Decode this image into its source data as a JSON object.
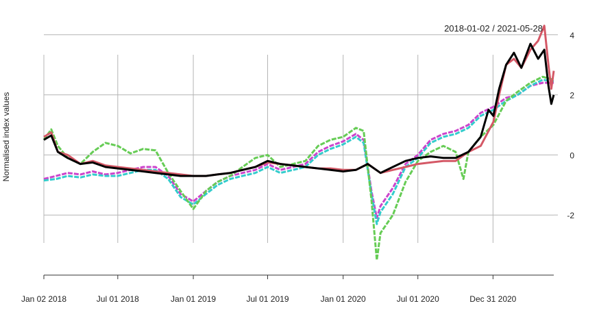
{
  "chart_data": {
    "type": "line",
    "date_range_label": "2018-01-02 / 2021-05-28",
    "ylabel": "Normalised index values",
    "xlim": [
      "2018-01-02",
      "2021-05-28"
    ],
    "ylim": [
      -4,
      4.2
    ],
    "y_ticks": [
      {
        "value": 4,
        "label": "4"
      },
      {
        "value": 2,
        "label": "2"
      },
      {
        "value": 0,
        "label": "0"
      },
      {
        "value": -2,
        "label": "-2"
      }
    ],
    "x_ticks": [
      {
        "date": "2018-01-02",
        "label": "Jan 02 2018"
      },
      {
        "date": "2018-07-01",
        "label": "Jul 01 2018"
      },
      {
        "date": "2019-01-01",
        "label": "Jan 01 2019"
      },
      {
        "date": "2019-07-01",
        "label": "Jul 01 2019"
      },
      {
        "date": "2020-01-01",
        "label": "Jan 01 2020"
      },
      {
        "date": "2020-07-01",
        "label": "Jul 01 2020"
      },
      {
        "date": "2020-12-31",
        "label": "Dec 31 2020"
      }
    ],
    "grid": true,
    "colors": {
      "grid": "#b4b4b4",
      "axis": "#333333"
    },
    "series": [
      {
        "color": "#cc44cc",
        "dash": true,
        "points": [
          [
            "2018-01-02",
            -0.8
          ],
          [
            "2018-02-01",
            -0.7
          ],
          [
            "2018-03-01",
            -0.6
          ],
          [
            "2018-04-01",
            -0.65
          ],
          [
            "2018-05-01",
            -0.55
          ],
          [
            "2018-06-01",
            -0.65
          ],
          [
            "2018-07-01",
            -0.6
          ],
          [
            "2018-08-01",
            -0.5
          ],
          [
            "2018-09-01",
            -0.4
          ],
          [
            "2018-10-01",
            -0.4
          ],
          [
            "2018-11-01",
            -0.7
          ],
          [
            "2018-12-01",
            -1.3
          ],
          [
            "2019-01-01",
            -1.55
          ],
          [
            "2019-02-01",
            -1.2
          ],
          [
            "2019-03-01",
            -0.9
          ],
          [
            "2019-04-01",
            -0.7
          ],
          [
            "2019-05-01",
            -0.6
          ],
          [
            "2019-06-01",
            -0.5
          ],
          [
            "2019-07-01",
            -0.3
          ],
          [
            "2019-08-01",
            -0.5
          ],
          [
            "2019-09-01",
            -0.4
          ],
          [
            "2019-10-01",
            -0.3
          ],
          [
            "2019-11-01",
            0.1
          ],
          [
            "2019-12-01",
            0.3
          ],
          [
            "2020-01-01",
            0.45
          ],
          [
            "2020-02-01",
            0.7
          ],
          [
            "2020-02-20",
            0.5
          ],
          [
            "2020-03-10",
            -1.2
          ],
          [
            "2020-03-23",
            -2.1
          ],
          [
            "2020-04-01",
            -1.7
          ],
          [
            "2020-05-01",
            -1.1
          ],
          [
            "2020-06-01",
            -0.3
          ],
          [
            "2020-07-01",
            0.0
          ],
          [
            "2020-08-01",
            0.5
          ],
          [
            "2020-09-01",
            0.7
          ],
          [
            "2020-10-01",
            0.8
          ],
          [
            "2020-11-01",
            1.0
          ],
          [
            "2020-12-01",
            1.4
          ],
          [
            "2021-01-01",
            1.6
          ],
          [
            "2021-02-01",
            1.9
          ],
          [
            "2021-03-01",
            2.0
          ],
          [
            "2021-04-01",
            2.3
          ],
          [
            "2021-05-01",
            2.4
          ],
          [
            "2021-05-28",
            2.4
          ]
        ]
      },
      {
        "color": "#33cccc",
        "dash": true,
        "points": [
          [
            "2018-01-02",
            -0.85
          ],
          [
            "2018-02-01",
            -0.8
          ],
          [
            "2018-03-01",
            -0.7
          ],
          [
            "2018-04-01",
            -0.75
          ],
          [
            "2018-05-01",
            -0.65
          ],
          [
            "2018-06-01",
            -0.7
          ],
          [
            "2018-07-01",
            -0.7
          ],
          [
            "2018-08-01",
            -0.6
          ],
          [
            "2018-09-01",
            -0.5
          ],
          [
            "2018-10-01",
            -0.5
          ],
          [
            "2018-11-01",
            -0.8
          ],
          [
            "2018-12-01",
            -1.4
          ],
          [
            "2019-01-01",
            -1.65
          ],
          [
            "2019-02-01",
            -1.3
          ],
          [
            "2019-03-01",
            -1.0
          ],
          [
            "2019-04-01",
            -0.8
          ],
          [
            "2019-05-01",
            -0.7
          ],
          [
            "2019-06-01",
            -0.6
          ],
          [
            "2019-07-01",
            -0.4
          ],
          [
            "2019-08-01",
            -0.6
          ],
          [
            "2019-09-01",
            -0.5
          ],
          [
            "2019-10-01",
            -0.4
          ],
          [
            "2019-11-01",
            0.0
          ],
          [
            "2019-12-01",
            0.2
          ],
          [
            "2020-01-01",
            0.35
          ],
          [
            "2020-02-01",
            0.6
          ],
          [
            "2020-02-20",
            0.4
          ],
          [
            "2020-03-10",
            -1.3
          ],
          [
            "2020-03-23",
            -2.3
          ],
          [
            "2020-04-01",
            -1.9
          ],
          [
            "2020-05-01",
            -1.3
          ],
          [
            "2020-06-01",
            -0.4
          ],
          [
            "2020-07-01",
            -0.1
          ],
          [
            "2020-08-01",
            0.4
          ],
          [
            "2020-09-01",
            0.6
          ],
          [
            "2020-10-01",
            0.7
          ],
          [
            "2020-11-01",
            0.9
          ],
          [
            "2020-12-01",
            1.3
          ],
          [
            "2021-01-01",
            1.5
          ],
          [
            "2021-02-01",
            1.8
          ],
          [
            "2021-03-01",
            2.0
          ],
          [
            "2021-04-01",
            2.3
          ],
          [
            "2021-05-01",
            2.5
          ],
          [
            "2021-05-28",
            2.45
          ]
        ]
      },
      {
        "color": "#66cc55",
        "dash": true,
        "points": [
          [
            "2018-01-02",
            0.5
          ],
          [
            "2018-01-20",
            0.85
          ],
          [
            "2018-02-05",
            0.3
          ],
          [
            "2018-03-01",
            -0.1
          ],
          [
            "2018-04-01",
            -0.3
          ],
          [
            "2018-05-01",
            0.1
          ],
          [
            "2018-06-01",
            0.4
          ],
          [
            "2018-07-01",
            0.3
          ],
          [
            "2018-08-01",
            0.05
          ],
          [
            "2018-09-01",
            0.2
          ],
          [
            "2018-10-01",
            0.15
          ],
          [
            "2018-11-01",
            -0.6
          ],
          [
            "2018-12-01",
            -1.2
          ],
          [
            "2019-01-01",
            -1.8
          ],
          [
            "2019-02-01",
            -1.2
          ],
          [
            "2019-03-01",
            -0.9
          ],
          [
            "2019-04-01",
            -0.7
          ],
          [
            "2019-05-01",
            -0.4
          ],
          [
            "2019-06-01",
            -0.1
          ],
          [
            "2019-07-01",
            0.0
          ],
          [
            "2019-08-01",
            -0.4
          ],
          [
            "2019-09-01",
            -0.3
          ],
          [
            "2019-10-01",
            -0.2
          ],
          [
            "2019-11-01",
            0.3
          ],
          [
            "2019-12-01",
            0.5
          ],
          [
            "2020-01-01",
            0.6
          ],
          [
            "2020-02-01",
            0.9
          ],
          [
            "2020-02-20",
            0.8
          ],
          [
            "2020-03-10",
            -1.5
          ],
          [
            "2020-03-23",
            -3.5
          ],
          [
            "2020-04-01",
            -2.6
          ],
          [
            "2020-05-01",
            -2.0
          ],
          [
            "2020-06-01",
            -0.9
          ],
          [
            "2020-07-01",
            -0.2
          ],
          [
            "2020-08-01",
            0.1
          ],
          [
            "2020-09-01",
            0.3
          ],
          [
            "2020-10-01",
            0.1
          ],
          [
            "2020-10-20",
            -0.8
          ],
          [
            "2020-11-01",
            0.1
          ],
          [
            "2020-12-01",
            0.6
          ],
          [
            "2021-01-01",
            1.0
          ],
          [
            "2021-02-01",
            1.8
          ],
          [
            "2021-03-01",
            2.1
          ],
          [
            "2021-04-01",
            2.4
          ],
          [
            "2021-05-01",
            2.6
          ],
          [
            "2021-05-28",
            2.5
          ]
        ]
      },
      {
        "color": "#d45866",
        "dash": false,
        "points": [
          [
            "2018-01-02",
            0.6
          ],
          [
            "2018-01-20",
            0.75
          ],
          [
            "2018-02-05",
            0.1
          ],
          [
            "2018-03-01",
            0.0
          ],
          [
            "2018-04-01",
            -0.3
          ],
          [
            "2018-05-01",
            -0.2
          ],
          [
            "2018-06-01",
            -0.35
          ],
          [
            "2018-07-01",
            -0.4
          ],
          [
            "2018-08-01",
            -0.45
          ],
          [
            "2018-09-01",
            -0.5
          ],
          [
            "2018-10-01",
            -0.55
          ],
          [
            "2018-11-01",
            -0.6
          ],
          [
            "2018-12-01",
            -0.65
          ],
          [
            "2019-01-01",
            -0.7
          ],
          [
            "2019-02-01",
            -0.7
          ],
          [
            "2019-03-01",
            -0.65
          ],
          [
            "2019-04-01",
            -0.6
          ],
          [
            "2019-05-01",
            -0.5
          ],
          [
            "2019-06-01",
            -0.4
          ],
          [
            "2019-07-01",
            -0.25
          ],
          [
            "2019-08-01",
            -0.3
          ],
          [
            "2019-09-01",
            -0.35
          ],
          [
            "2019-10-01",
            -0.4
          ],
          [
            "2019-11-01",
            -0.45
          ],
          [
            "2019-12-01",
            -0.45
          ],
          [
            "2020-01-01",
            -0.5
          ],
          [
            "2020-02-01",
            -0.5
          ],
          [
            "2020-03-01",
            -0.3
          ],
          [
            "2020-04-01",
            -0.6
          ],
          [
            "2020-05-01",
            -0.5
          ],
          [
            "2020-06-01",
            -0.4
          ],
          [
            "2020-07-01",
            -0.3
          ],
          [
            "2020-08-01",
            -0.25
          ],
          [
            "2020-09-01",
            -0.2
          ],
          [
            "2020-10-01",
            -0.2
          ],
          [
            "2020-11-01",
            0.1
          ],
          [
            "2020-12-01",
            0.3
          ],
          [
            "2021-01-01",
            1.1
          ],
          [
            "2021-01-15",
            2.0
          ],
          [
            "2021-02-01",
            3.0
          ],
          [
            "2021-02-20",
            3.2
          ],
          [
            "2021-03-10",
            2.9
          ],
          [
            "2021-04-01",
            3.5
          ],
          [
            "2021-04-20",
            3.8
          ],
          [
            "2021-05-05",
            4.3
          ],
          [
            "2021-05-15",
            3.0
          ],
          [
            "2021-05-22",
            2.2
          ],
          [
            "2021-05-28",
            2.8
          ]
        ]
      },
      {
        "color": "#000000",
        "dash": false,
        "points": [
          [
            "2018-01-02",
            0.5
          ],
          [
            "2018-01-20",
            0.65
          ],
          [
            "2018-02-05",
            0.1
          ],
          [
            "2018-03-01",
            -0.1
          ],
          [
            "2018-04-01",
            -0.3
          ],
          [
            "2018-05-01",
            -0.25
          ],
          [
            "2018-06-01",
            -0.4
          ],
          [
            "2018-07-01",
            -0.45
          ],
          [
            "2018-08-01",
            -0.5
          ],
          [
            "2018-09-01",
            -0.55
          ],
          [
            "2018-10-01",
            -0.6
          ],
          [
            "2018-11-01",
            -0.65
          ],
          [
            "2018-12-01",
            -0.7
          ],
          [
            "2019-01-01",
            -0.7
          ],
          [
            "2019-02-01",
            -0.7
          ],
          [
            "2019-03-01",
            -0.65
          ],
          [
            "2019-04-01",
            -0.6
          ],
          [
            "2019-05-01",
            -0.5
          ],
          [
            "2019-06-01",
            -0.4
          ],
          [
            "2019-07-01",
            -0.2
          ],
          [
            "2019-08-01",
            -0.3
          ],
          [
            "2019-09-01",
            -0.35
          ],
          [
            "2019-10-01",
            -0.4
          ],
          [
            "2019-11-01",
            -0.45
          ],
          [
            "2019-12-01",
            -0.5
          ],
          [
            "2020-01-01",
            -0.55
          ],
          [
            "2020-02-01",
            -0.5
          ],
          [
            "2020-03-01",
            -0.3
          ],
          [
            "2020-04-01",
            -0.6
          ],
          [
            "2020-05-01",
            -0.4
          ],
          [
            "2020-06-01",
            -0.2
          ],
          [
            "2020-07-01",
            -0.1
          ],
          [
            "2020-08-01",
            -0.05
          ],
          [
            "2020-09-01",
            -0.1
          ],
          [
            "2020-10-01",
            -0.1
          ],
          [
            "2020-11-01",
            0.1
          ],
          [
            "2020-12-01",
            0.6
          ],
          [
            "2020-12-20",
            1.5
          ],
          [
            "2021-01-01",
            1.3
          ],
          [
            "2021-01-15",
            2.2
          ],
          [
            "2021-02-01",
            3.0
          ],
          [
            "2021-02-20",
            3.4
          ],
          [
            "2021-03-10",
            2.9
          ],
          [
            "2021-04-01",
            3.7
          ],
          [
            "2021-04-20",
            3.2
          ],
          [
            "2021-05-05",
            3.5
          ],
          [
            "2021-05-15",
            2.3
          ],
          [
            "2021-05-22",
            1.7
          ],
          [
            "2021-05-28",
            2.0
          ]
        ]
      }
    ]
  }
}
